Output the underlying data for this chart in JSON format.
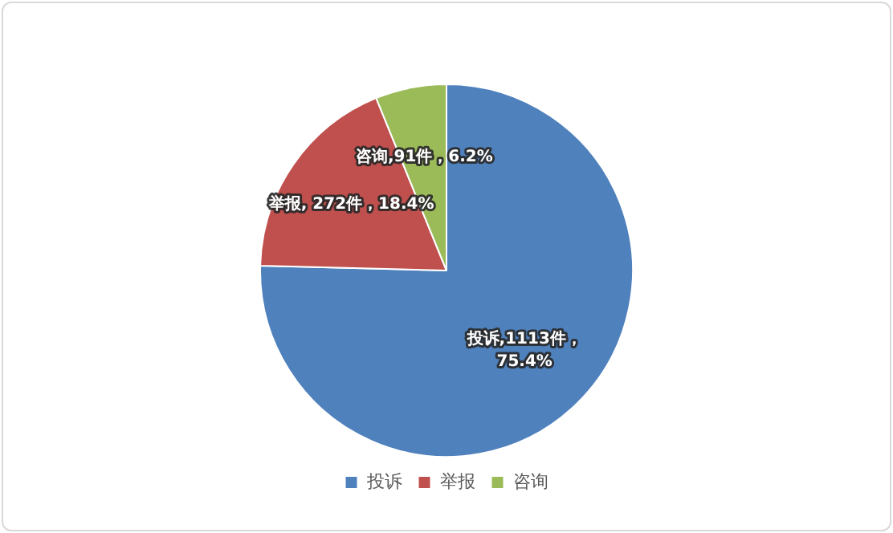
{
  "chart_data": {
    "type": "pie",
    "categories": [
      "投诉",
      "举报",
      "咨询"
    ],
    "values": [
      1113,
      272,
      91
    ],
    "colors": [
      "#4f81bd",
      "#c0504d",
      "#9bbb59"
    ],
    "value_labels": [
      "投诉,1113件，\n75.4%",
      "举报, 272件，18.4%",
      "咨询,91件，6.2%"
    ],
    "legend": "bottom"
  }
}
